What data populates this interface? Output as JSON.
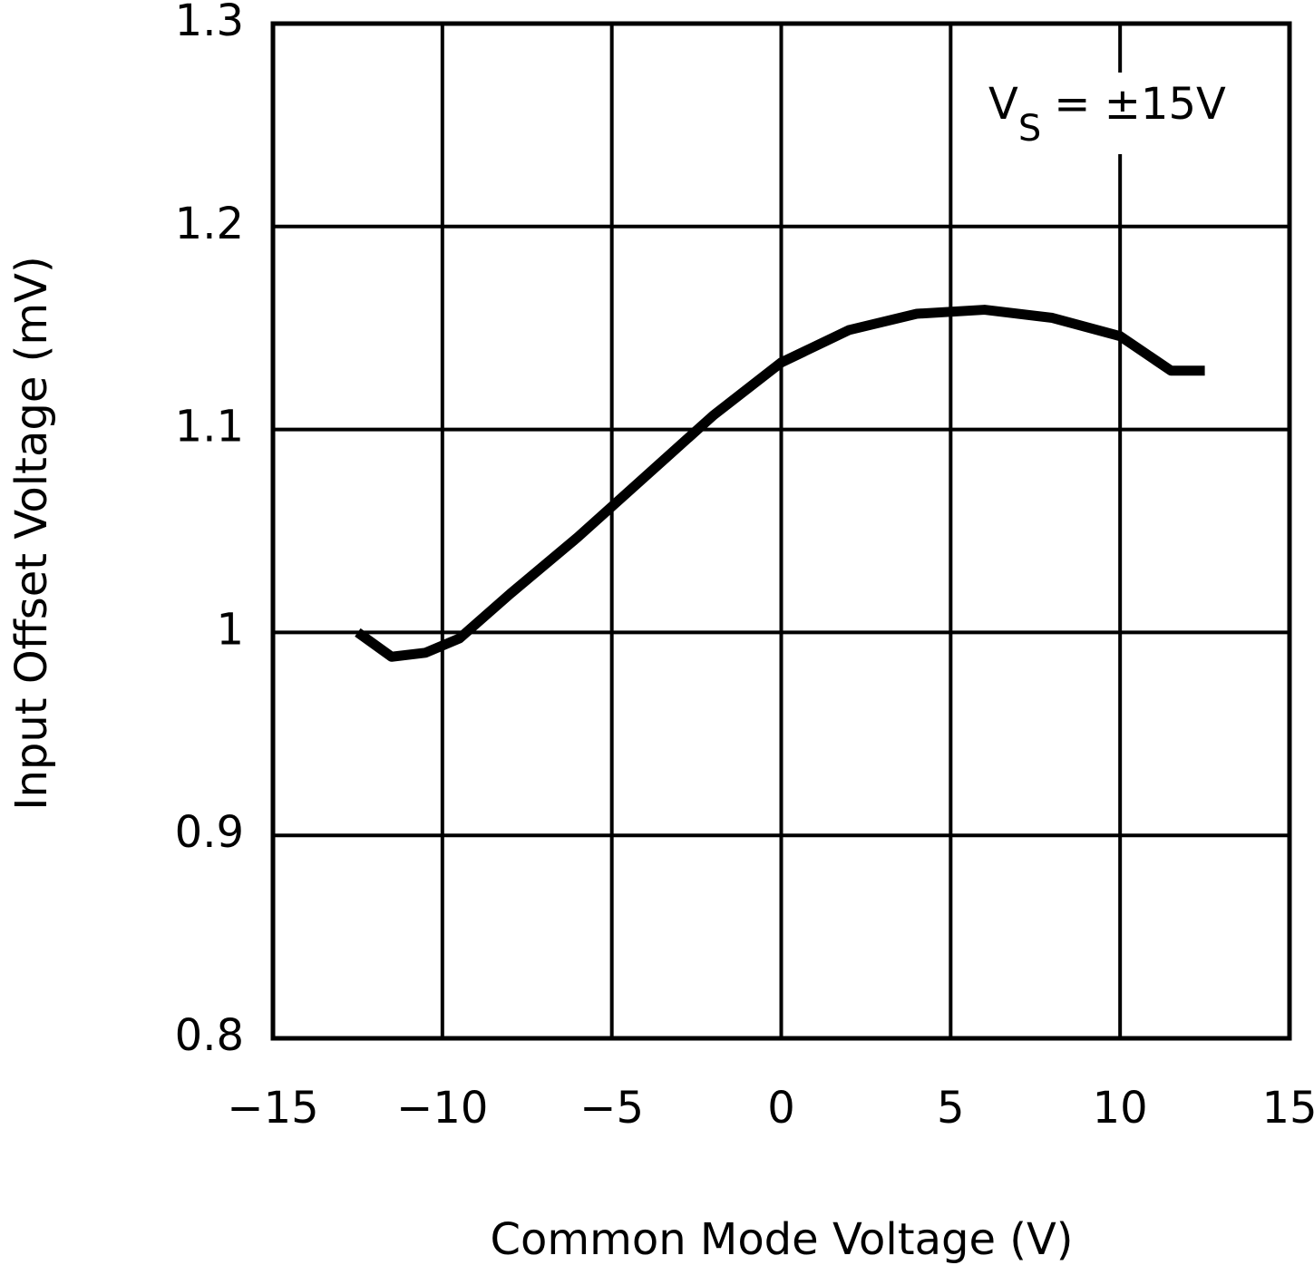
{
  "chart_data": {
    "type": "line",
    "xlabel": "Common Mode Voltage (V)",
    "ylabel": "Input Offset Voltage (mV)",
    "annotation": {
      "main": "V",
      "subscript": "S",
      "rest": "= ±15V"
    },
    "x": [
      -12.5,
      -11.5,
      -10.5,
      -9.5,
      -8,
      -6,
      -4,
      -2,
      0,
      2,
      4,
      6,
      8,
      10,
      11.5,
      12.5
    ],
    "series": [
      {
        "color": "#000000",
        "values": [
          1.0,
          0.988,
          0.99,
          0.997,
          1.019,
          1.047,
          1.077,
          1.107,
          1.133,
          1.149,
          1.157,
          1.159,
          1.155,
          1.146,
          1.129,
          1.129
        ]
      }
    ],
    "xlim": [
      -15,
      15
    ],
    "xticks": [
      {
        "value": -15,
        "label": "−15"
      },
      {
        "value": -10,
        "label": "−10"
      },
      {
        "value": -5,
        "label": "−5"
      },
      0,
      5,
      10,
      15
    ],
    "ylim": [
      0.8,
      1.3
    ],
    "yticks": [
      0.8,
      0.9,
      1,
      1.1,
      1.2,
      1.3
    ],
    "grid": true
  }
}
